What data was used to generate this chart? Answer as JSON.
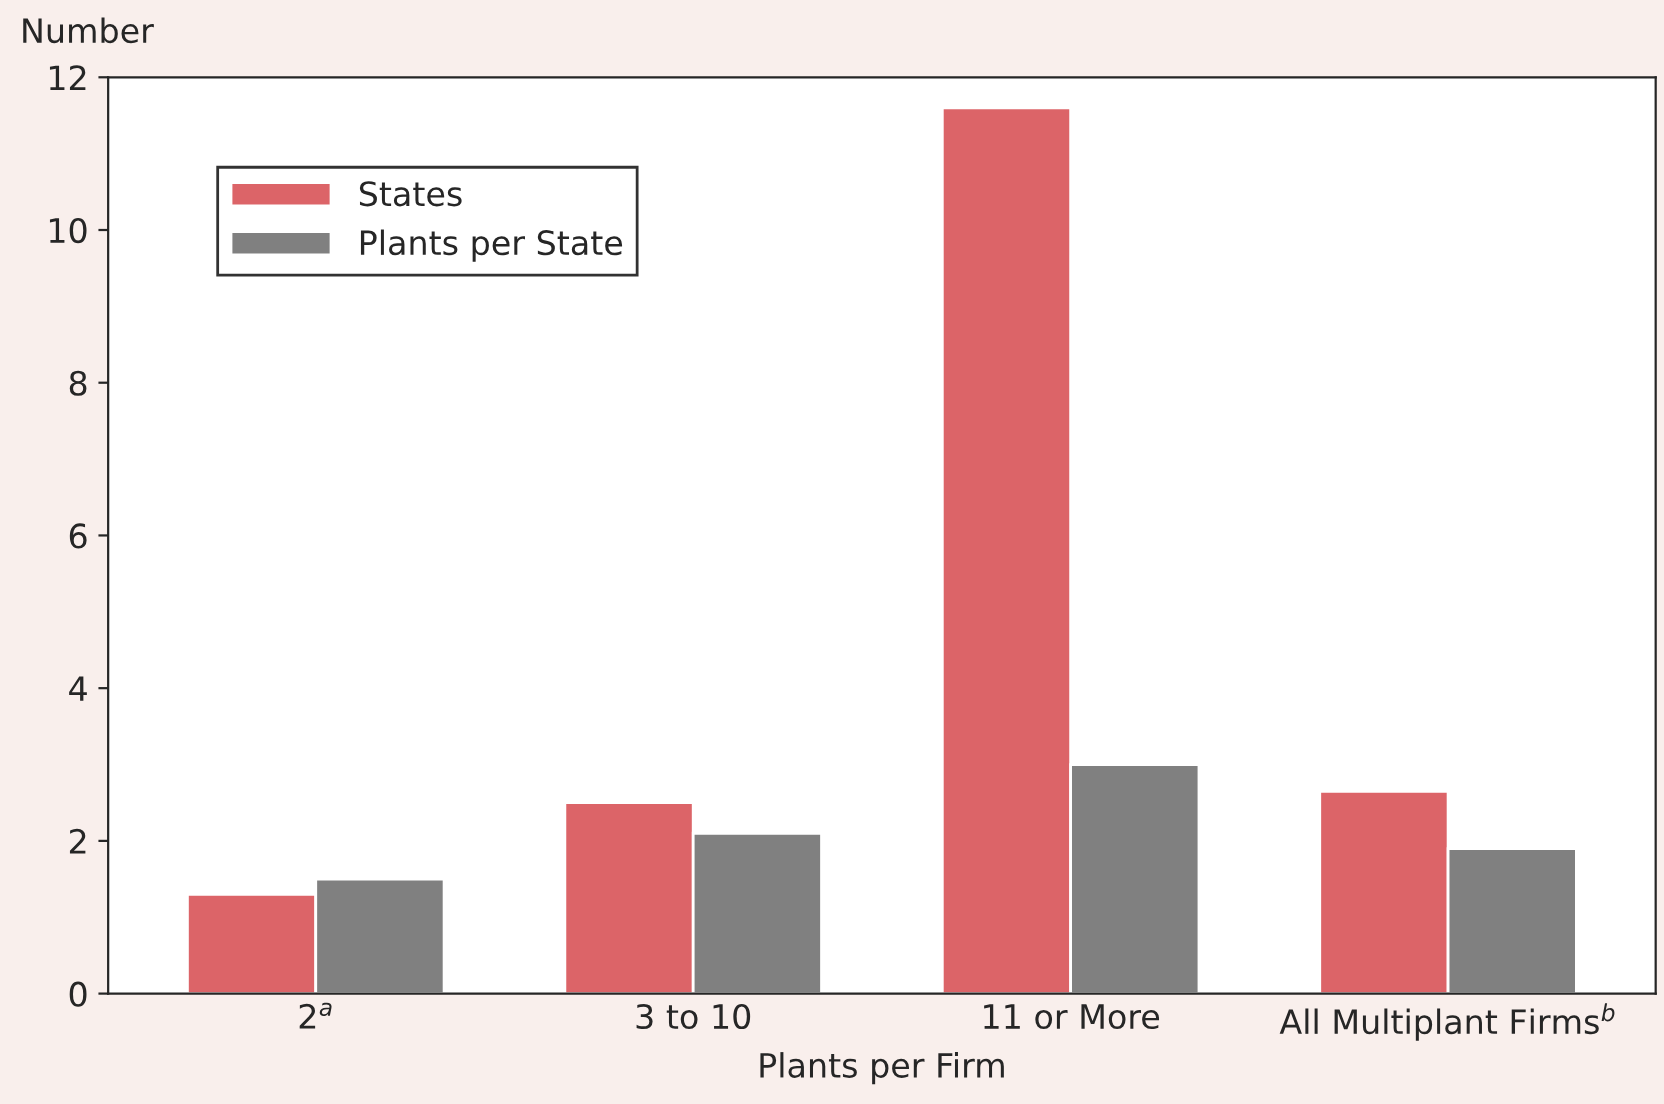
{
  "chart_data": {
    "type": "bar",
    "xlabel": "Plants per Firm",
    "ylabel": "Number",
    "categories": [
      "2$^{a}$",
      "3 to 10",
      "11 or More",
      "All Multiplant Firms$^{b}$"
    ],
    "series": [
      {
        "name": "States",
        "color": "#dc6468",
        "values": [
          1.3,
          2.5,
          11.6,
          2.65
        ]
      },
      {
        "name": "Plants per State",
        "color": "#808080",
        "values": [
          1.5,
          2.1,
          3.0,
          1.9
        ]
      }
    ],
    "ylim": [
      0,
      12
    ],
    "yticks": [
      0,
      2,
      4,
      6,
      8,
      10,
      12
    ],
    "grid": false,
    "legend": "top left"
  }
}
